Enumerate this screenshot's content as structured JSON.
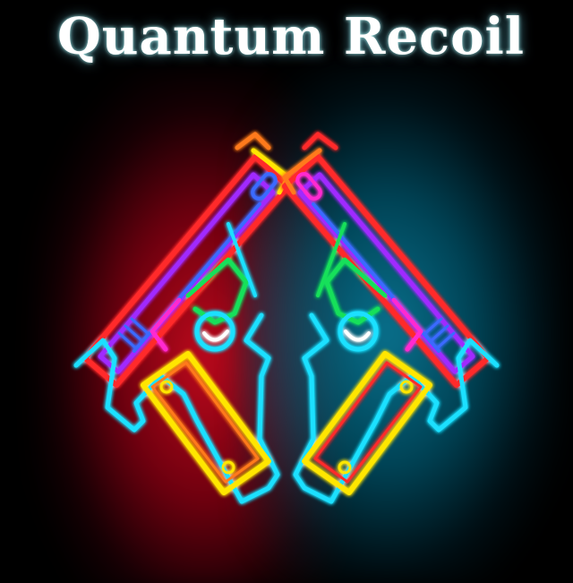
{
  "title": "Quantum Recoil",
  "colors": {
    "background": "#000000",
    "glow_left": "#c80a1e",
    "glow_right": "#0a7896",
    "neon": [
      "#ff2a2a",
      "#ff7a1a",
      "#ffe600",
      "#19e05a",
      "#1ae0ff",
      "#3a6bff",
      "#a02aff",
      "#ff2ad0"
    ]
  },
  "emblem": {
    "description_icon": "neon-twin-pistols-icon"
  }
}
